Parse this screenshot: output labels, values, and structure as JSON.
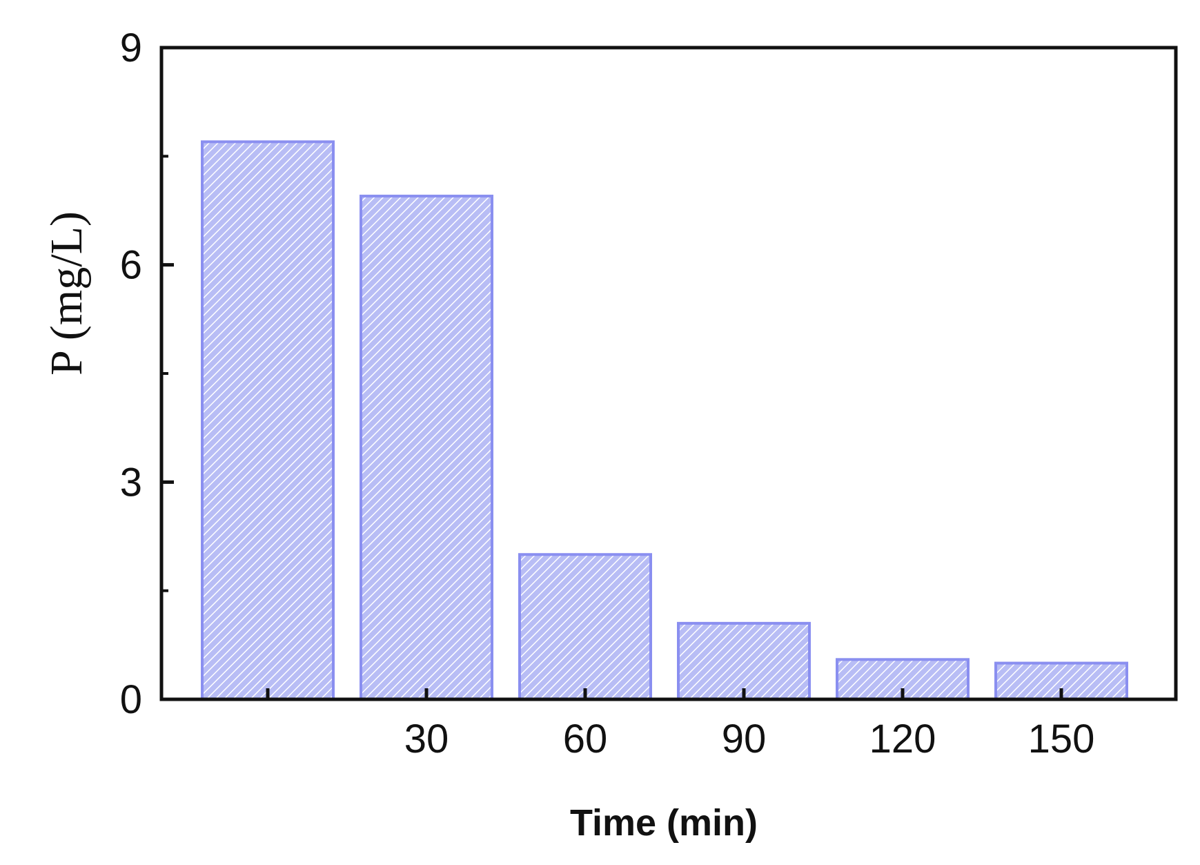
{
  "chart_data": {
    "type": "bar",
    "title": "",
    "xlabel": "Time (min)",
    "ylabel": "P (mg/L)",
    "ylim": [
      0,
      9
    ],
    "y_ticks": [
      "0",
      "3",
      "6",
      "9"
    ],
    "categories": [
      "",
      "30",
      "60",
      "90",
      "120",
      "150"
    ],
    "values": [
      7.7,
      6.95,
      2.0,
      1.05,
      0.55,
      0.5
    ],
    "grid": false,
    "legend": "none",
    "bar_color": "#b8bdf5",
    "bar_edge_color": "#8a8ff0",
    "hatch_color": "#ffffff",
    "axis_color": "#111111"
  }
}
